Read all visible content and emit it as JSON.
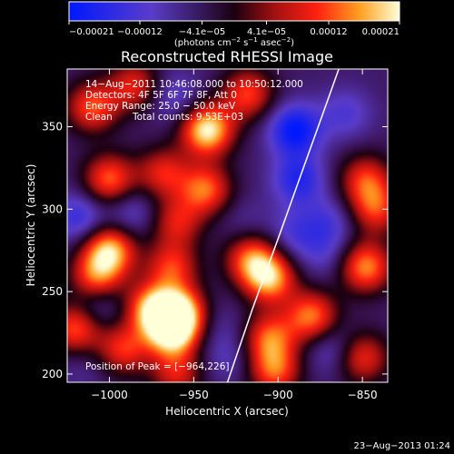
{
  "chart_data": {
    "type": "heatmap",
    "title": "Reconstructed RHESSI Image",
    "xlabel": "Heliocentric X (arcsec)",
    "ylabel": "Heliocentric Y (arcsec)",
    "xlim": [
      -1025,
      -835
    ],
    "ylim": [
      195,
      385
    ],
    "x_ticks": [
      -1000,
      -950,
      -900,
      -850
    ],
    "x_tick_labels": [
      "−1000",
      "−950",
      "−900",
      "−850"
    ],
    "y_ticks": [
      200,
      250,
      300,
      350
    ],
    "y_tick_labels": [
      "200",
      "250",
      "300",
      "350"
    ],
    "colorbar": {
      "range": [
        -0.00021,
        0.00021
      ],
      "ticks": [
        -0.00021,
        -0.00012,
        -4.1e-05,
        4.1e-05,
        0.00012,
        0.00021
      ],
      "tick_labels": [
        "−0.00021",
        "−0.00012",
        "−4.1e−05",
        "4.1e−05",
        "0.00012",
        "0.00021"
      ],
      "unit_main": "(photons cm",
      "unit_exp1": "−2",
      "unit_mid": " s",
      "unit_exp2": "−1",
      "unit_end": " asec",
      "unit_exp3": "−2",
      "unit_close": ")"
    },
    "annotations": {
      "time_range": "14−Aug−2011 10:46:08.000 to 10:50:12.000",
      "detectors": "Detectors: 4F 5F 6F 7F 8F, Att 0",
      "energy": "Energy Range: 25.0 − 50.0 keV",
      "clean": "Clean",
      "counts": "Total counts: 9.53E+03",
      "peak": "Position of Peak = [−964,226]"
    },
    "peak": [
      -964,
      226
    ],
    "limb_curve": [
      [
        -930,
        195
      ],
      [
        -915,
        240
      ],
      [
        -900,
        282
      ],
      [
        -885,
        325
      ],
      [
        -872,
        362
      ],
      [
        -864,
        385
      ]
    ],
    "blobs": [
      {
        "x": -1010,
        "y": 362,
        "v": 0.00012
      },
      {
        "x": -985,
        "y": 375,
        "v": 9e-05
      },
      {
        "x": -962,
        "y": 368,
        "v": -0.00012
      },
      {
        "x": -942,
        "y": 348,
        "v": 0.00021
      },
      {
        "x": -943,
        "y": 312,
        "v": 0.00013
      },
      {
        "x": -918,
        "y": 370,
        "v": 0.00011
      },
      {
        "x": -890,
        "y": 348,
        "v": -0.00021
      },
      {
        "x": -888,
        "y": 318,
        "v": -0.00017
      },
      {
        "x": -860,
        "y": 358,
        "v": -0.00012
      },
      {
        "x": -848,
        "y": 318,
        "v": 0.0001
      },
      {
        "x": -1000,
        "y": 318,
        "v": 0.00013
      },
      {
        "x": -968,
        "y": 322,
        "v": 9e-05
      },
      {
        "x": -1018,
        "y": 295,
        "v": -0.00015
      },
      {
        "x": -987,
        "y": 298,
        "v": -0.00012
      },
      {
        "x": -960,
        "y": 292,
        "v": 8e-05
      },
      {
        "x": -1000,
        "y": 275,
        "v": 0.00018
      },
      {
        "x": -1008,
        "y": 258,
        "v": 0.00012
      },
      {
        "x": -963,
        "y": 265,
        "v": 0.0001
      },
      {
        "x": -920,
        "y": 292,
        "v": -8e-05
      },
      {
        "x": -916,
        "y": 270,
        "v": 0.00012
      },
      {
        "x": -890,
        "y": 285,
        "v": -0.00012
      },
      {
        "x": -905,
        "y": 258,
        "v": 0.00016
      },
      {
        "x": -872,
        "y": 272,
        "v": -0.0001
      },
      {
        "x": -870,
        "y": 292,
        "v": -0.00012
      },
      {
        "x": -848,
        "y": 265,
        "v": 0.00015
      },
      {
        "x": -842,
        "y": 300,
        "v": 0.0001
      },
      {
        "x": -1020,
        "y": 228,
        "v": 0.00013
      },
      {
        "x": -1008,
        "y": 242,
        "v": -0.00013
      },
      {
        "x": -992,
        "y": 215,
        "v": 0.0001
      },
      {
        "x": -975,
        "y": 240,
        "v": 0.00015
      },
      {
        "x": -963,
        "y": 226,
        "v": 0.00021
      },
      {
        "x": -958,
        "y": 238,
        "v": 0.00016
      },
      {
        "x": -935,
        "y": 230,
        "v": -8e-05
      },
      {
        "x": -930,
        "y": 210,
        "v": -0.0001
      },
      {
        "x": -905,
        "y": 222,
        "v": 0.00012
      },
      {
        "x": -902,
        "y": 202,
        "v": 0.00012
      },
      {
        "x": -880,
        "y": 235,
        "v": 0.00014
      },
      {
        "x": -868,
        "y": 215,
        "v": -0.00012
      },
      {
        "x": -850,
        "y": 210,
        "v": 0.0001
      },
      {
        "x": -1015,
        "y": 205,
        "v": -8e-05
      },
      {
        "x": -960,
        "y": 200,
        "v": 8e-05
      }
    ]
  },
  "footer": {
    "date": "23−Aug−2013 01:24"
  }
}
